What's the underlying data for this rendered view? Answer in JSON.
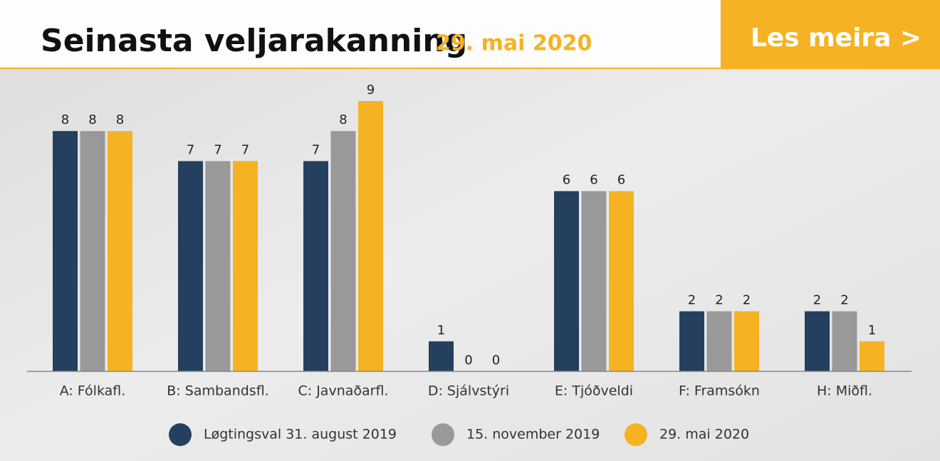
{
  "button_label": "Les meira >",
  "chart_data": {
    "type": "bar",
    "title": "Seinasta veljarakanning",
    "subtitle": "29. mai 2020",
    "categories": [
      "A: Fólkafl.",
      "B: Sambandsfl.",
      "C: Javnaðarfl.",
      "D: Sjálvstýri",
      "E: Tjóðveldi",
      "F: Framsókn",
      "H: Miðfl."
    ],
    "series": [
      {
        "name": "Løgtingsval 31. august 2019",
        "color": "#253f5f",
        "values": [
          8,
          7,
          7,
          1,
          6,
          2,
          2
        ]
      },
      {
        "name": "15. november 2019",
        "color": "#999999",
        "values": [
          8,
          7,
          8,
          0,
          6,
          2,
          2
        ]
      },
      {
        "name": "29. mai 2020",
        "color": "#f5b223",
        "values": [
          8,
          7,
          9,
          0,
          6,
          2,
          1
        ]
      }
    ],
    "legend": "bottom"
  }
}
